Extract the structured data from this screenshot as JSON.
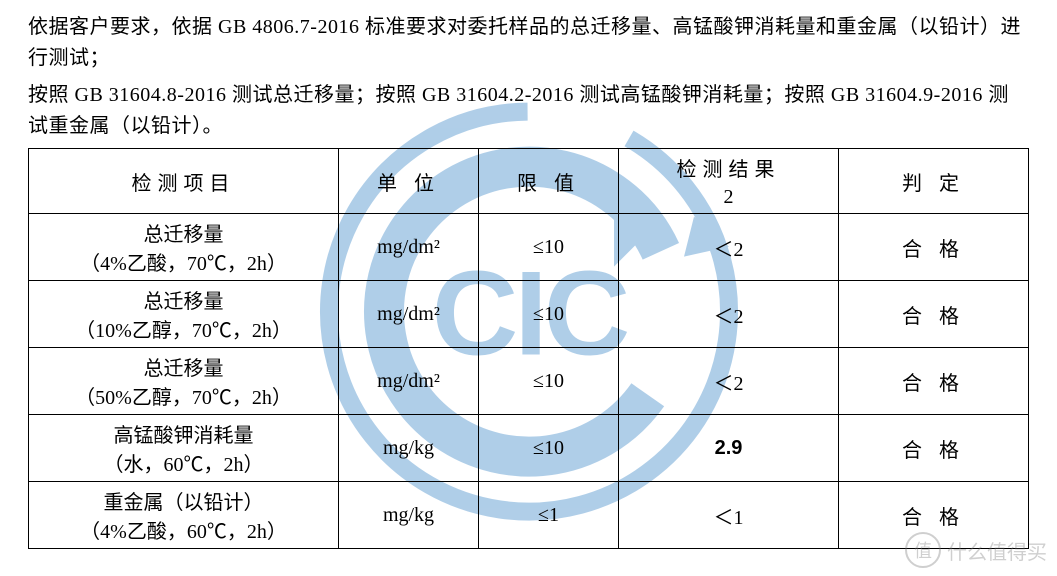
{
  "intro": {
    "p1": "依据客户要求，依据 GB 4806.7-2016 标准要求对委托样品的总迁移量、高锰酸钾消耗量和重金属（以铅计）进行测试；",
    "p2": "按照 GB 31604.8-2016 测试总迁移量；按照 GB 31604.2-2016 测试高锰酸钾消耗量；按照 GB 31604.9-2016 测试重金属（以铅计）。"
  },
  "table": {
    "headers": {
      "item": "检测项目",
      "unit": "单 位",
      "limit": "限 值",
      "result_top": "检测结果",
      "result_bottom": "2",
      "judge": "判 定"
    },
    "rows": [
      {
        "item_main": "总迁移量",
        "item_sub": "（4%乙酸，70℃，2h）",
        "unit": "mg/dm²",
        "limit": "≤10",
        "result": "＜2",
        "judge": "合 格"
      },
      {
        "item_main": "总迁移量",
        "item_sub": "（10%乙醇，70℃，2h）",
        "unit": "mg/dm²",
        "limit": "≤10",
        "result": "＜2",
        "judge": "合 格"
      },
      {
        "item_main": "总迁移量",
        "item_sub": "（50%乙醇，70℃，2h）",
        "unit": "mg/dm²",
        "limit": "≤10",
        "result": "＜2",
        "judge": "合 格"
      },
      {
        "item_main": "高锰酸钾消耗量",
        "item_sub": "（水，60℃，2h）",
        "unit": "mg/kg",
        "limit": "≤10",
        "result": "2.9",
        "result_bold": true,
        "judge": "合 格"
      },
      {
        "item_main": "重金属（以铅计）",
        "item_sub": "（4%乙酸，60℃，2h）",
        "unit": "mg/kg",
        "limit": "≤1",
        "result": "＜1",
        "judge": "合 格"
      }
    ]
  },
  "watermark": {
    "text": "CIC",
    "outer_color": "#6fa7d6",
    "inner_color": "#6fa7d6",
    "text_color": "#6fa7d6",
    "opacity": 0.55,
    "size": 430
  },
  "smzdm": {
    "icon": "值",
    "text": "什么值得买"
  },
  "colors": {
    "text": "#000000",
    "border": "#000000",
    "background": "#ffffff"
  }
}
